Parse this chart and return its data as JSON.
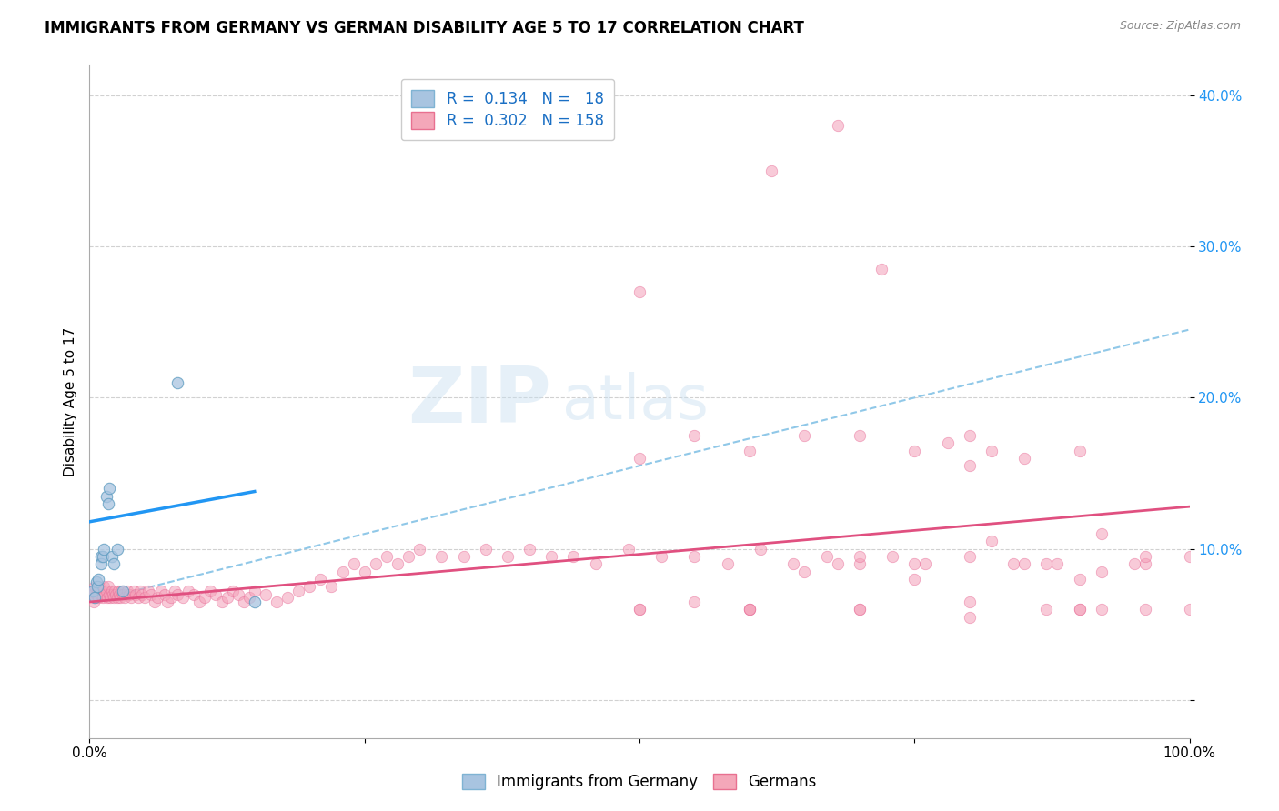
{
  "title": "IMMIGRANTS FROM GERMANY VS GERMAN DISABILITY AGE 5 TO 17 CORRELATION CHART",
  "source": "Source: ZipAtlas.com",
  "ylabel": "Disability Age 5 to 17",
  "xlim": [
    0.0,
    1.0
  ],
  "ylim": [
    -0.025,
    0.42
  ],
  "yticks": [
    0.0,
    0.1,
    0.2,
    0.3,
    0.4
  ],
  "ytick_labels": [
    "",
    "10.0%",
    "20.0%",
    "30.0%",
    "40.0%"
  ],
  "xticks": [
    0.0,
    0.25,
    0.5,
    0.75,
    1.0
  ],
  "xtick_labels": [
    "0.0%",
    "",
    "",
    "",
    "100.0%"
  ],
  "watermark_zip": "ZIP",
  "watermark_atlas": "atlas",
  "scatter_blue": {
    "x": [
      0.003,
      0.005,
      0.006,
      0.007,
      0.008,
      0.01,
      0.01,
      0.012,
      0.013,
      0.015,
      0.017,
      0.018,
      0.02,
      0.022,
      0.025,
      0.03,
      0.08,
      0.15
    ],
    "y": [
      0.072,
      0.068,
      0.078,
      0.075,
      0.08,
      0.095,
      0.09,
      0.095,
      0.1,
      0.135,
      0.13,
      0.14,
      0.095,
      0.09,
      0.1,
      0.072,
      0.21,
      0.065
    ],
    "color": "#a8c4e0",
    "edge_color": "#5a9abf",
    "size": 80,
    "alpha": 0.75
  },
  "scatter_pink": {
    "x": [
      0.002,
      0.003,
      0.004,
      0.005,
      0.005,
      0.006,
      0.007,
      0.008,
      0.009,
      0.01,
      0.011,
      0.012,
      0.013,
      0.014,
      0.015,
      0.016,
      0.017,
      0.018,
      0.019,
      0.02,
      0.021,
      0.022,
      0.023,
      0.024,
      0.025,
      0.026,
      0.027,
      0.028,
      0.029,
      0.03,
      0.032,
      0.034,
      0.036,
      0.038,
      0.04,
      0.042,
      0.044,
      0.046,
      0.048,
      0.05,
      0.053,
      0.056,
      0.059,
      0.062,
      0.065,
      0.068,
      0.071,
      0.074,
      0.077,
      0.08,
      0.085,
      0.09,
      0.095,
      0.1,
      0.105,
      0.11,
      0.115,
      0.12,
      0.125,
      0.13,
      0.135,
      0.14,
      0.145,
      0.15,
      0.16,
      0.17,
      0.18,
      0.19,
      0.2,
      0.21,
      0.22,
      0.23,
      0.24,
      0.25,
      0.26,
      0.27,
      0.28,
      0.29,
      0.3,
      0.32,
      0.34,
      0.36,
      0.38,
      0.4,
      0.42,
      0.44,
      0.46,
      0.49,
      0.52,
      0.55,
      0.58,
      0.61,
      0.64,
      0.67,
      0.7,
      0.73,
      0.76,
      0.8,
      0.84,
      0.88,
      0.92,
      0.96,
      1.0,
      0.5,
      0.55,
      0.6,
      0.65,
      0.7,
      0.75,
      0.8,
      0.85,
      0.9,
      0.95,
      0.5,
      0.55,
      0.6,
      0.65,
      0.7,
      0.75,
      0.8,
      0.85,
      0.9,
      0.62,
      0.68,
      0.72,
      0.78,
      0.82,
      0.87,
      0.92,
      0.96,
      0.68,
      0.75,
      0.82,
      0.87,
      0.92,
      0.96,
      0.5,
      0.6,
      0.7,
      0.8,
      0.9,
      1.0,
      0.5,
      0.6,
      0.7,
      0.8,
      0.9
    ],
    "y": [
      0.07,
      0.072,
      0.065,
      0.068,
      0.075,
      0.07,
      0.072,
      0.068,
      0.075,
      0.07,
      0.072,
      0.068,
      0.075,
      0.07,
      0.072,
      0.068,
      0.075,
      0.07,
      0.068,
      0.072,
      0.07,
      0.068,
      0.072,
      0.07,
      0.068,
      0.072,
      0.07,
      0.068,
      0.072,
      0.07,
      0.068,
      0.072,
      0.07,
      0.068,
      0.072,
      0.07,
      0.068,
      0.072,
      0.07,
      0.068,
      0.072,
      0.07,
      0.065,
      0.068,
      0.072,
      0.07,
      0.065,
      0.068,
      0.072,
      0.07,
      0.068,
      0.072,
      0.07,
      0.065,
      0.068,
      0.072,
      0.07,
      0.065,
      0.068,
      0.072,
      0.07,
      0.065,
      0.068,
      0.072,
      0.07,
      0.065,
      0.068,
      0.072,
      0.075,
      0.08,
      0.075,
      0.085,
      0.09,
      0.085,
      0.09,
      0.095,
      0.09,
      0.095,
      0.1,
      0.095,
      0.095,
      0.1,
      0.095,
      0.1,
      0.095,
      0.095,
      0.09,
      0.1,
      0.095,
      0.095,
      0.09,
      0.1,
      0.09,
      0.095,
      0.09,
      0.095,
      0.09,
      0.095,
      0.09,
      0.09,
      0.085,
      0.09,
      0.095,
      0.27,
      0.065,
      0.06,
      0.085,
      0.095,
      0.08,
      0.155,
      0.09,
      0.08,
      0.09,
      0.16,
      0.175,
      0.165,
      0.175,
      0.175,
      0.165,
      0.175,
      0.16,
      0.165,
      0.35,
      0.38,
      0.285,
      0.17,
      0.165,
      0.06,
      0.06,
      0.06,
      0.09,
      0.09,
      0.105,
      0.09,
      0.11,
      0.095,
      0.06,
      0.06,
      0.06,
      0.055,
      0.06,
      0.06,
      0.06,
      0.06,
      0.06,
      0.065,
      0.06
    ],
    "color": "#f4a0b8",
    "edge_color": "#e8709a",
    "size": 80,
    "alpha": 0.55
  },
  "trend_blue_solid": {
    "x_start": 0.0,
    "x_end": 0.15,
    "y_start": 0.118,
    "y_end": 0.138,
    "color": "#2196F3",
    "linewidth": 2.5
  },
  "trend_pink_solid": {
    "x_start": 0.0,
    "x_end": 1.0,
    "y_start": 0.065,
    "y_end": 0.128,
    "color": "#e05080",
    "linewidth": 2.0
  },
  "trend_blue_dashed": {
    "x_start": 0.0,
    "x_end": 1.0,
    "y_start": 0.065,
    "y_end": 0.245,
    "color": "#90c8e8",
    "linewidth": 1.5
  },
  "background_color": "#ffffff",
  "grid_color": "#cccccc",
  "title_fontsize": 12,
  "axis_fontsize": 11,
  "tick_fontsize": 11
}
